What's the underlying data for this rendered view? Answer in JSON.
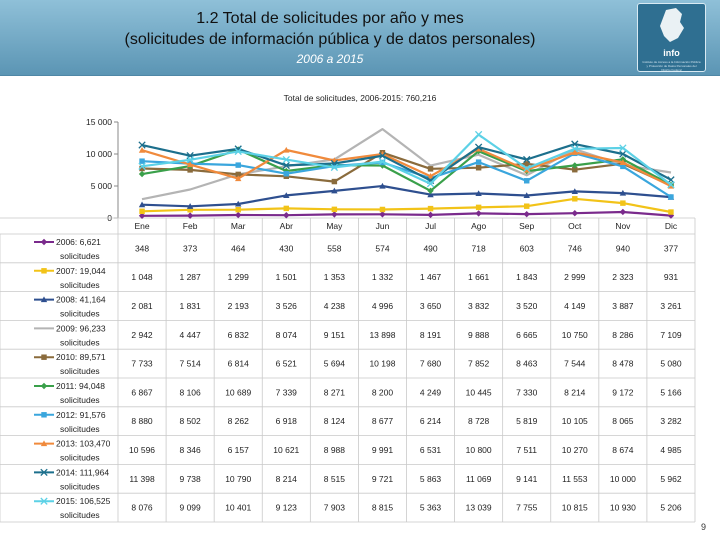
{
  "header": {
    "title_line1": "1.2 Total de solicitudes por año y mes",
    "title_line2": "(solicitudes de información pública y de datos personales)",
    "subtitle": "2006 a 2015",
    "logo_text": "info",
    "logo_fine": "Instituto de Acceso a la Información Pública y Protección de Datos Personales del Distrito Federal"
  },
  "page_number": "9",
  "colors": {
    "banner_top": "#8fc0d8",
    "banner_bottom": "#5b95b4",
    "logo": "#2f6f91"
  },
  "chart_data": {
    "type": "line",
    "title": "Total de solicitudes, 2006-2015: 760,216",
    "categories": [
      "Ene",
      "Feb",
      "Mar",
      "Abr",
      "May",
      "Jun",
      "Jul",
      "Ago",
      "Sep",
      "Oct",
      "Nov",
      "Dic"
    ],
    "ylim": [
      0,
      15000
    ],
    "yticks": [
      0,
      5000,
      10000,
      15000
    ],
    "ytick_labels": [
      "0",
      "5 000",
      "10 000",
      "15 000"
    ],
    "grid": false,
    "legend_position": "left, aligned with data table rows",
    "series": [
      {
        "name": "2006: 6,621 solicitudes",
        "legend_line1": "2006: 6,621",
        "color": "#7a2a8c",
        "marker": "diamond",
        "values": [
          348,
          373,
          464,
          430,
          558,
          574,
          490,
          718,
          603,
          746,
          940,
          377
        ],
        "labels": [
          "348",
          "373",
          "464",
          "430",
          "558",
          "574",
          "490",
          "718",
          "603",
          "746",
          "940",
          "377"
        ]
      },
      {
        "name": "2007: 19,044 solicitudes",
        "legend_line1": "2007: 19,044",
        "color": "#f2c318",
        "marker": "square",
        "values": [
          1048,
          1287,
          1299,
          1501,
          1353,
          1332,
          1467,
          1661,
          1843,
          2999,
          2323,
          931
        ],
        "labels": [
          "1 048",
          "1 287",
          "1 299",
          "1 501",
          "1 353",
          "1 332",
          "1 467",
          "1 661",
          "1 843",
          "2 999",
          "2 323",
          "931"
        ]
      },
      {
        "name": "2008: 41,164 solicitudes",
        "legend_line1": "2008: 41,164",
        "color": "#2e4f8f",
        "marker": "triangle",
        "values": [
          2081,
          1831,
          2193,
          3526,
          4238,
          4996,
          3650,
          3832,
          3520,
          4149,
          3887,
          3261
        ],
        "labels": [
          "2 081",
          "1 831",
          "2 193",
          "3 526",
          "4 238",
          "4 996",
          "3 650",
          "3 832",
          "3 520",
          "4 149",
          "3 887",
          "3 261"
        ]
      },
      {
        "name": "2009: 96,233 solicitudes",
        "legend_line1": "2009: 96,233",
        "color": "#b4b4b4",
        "marker": "none",
        "values": [
          2942,
          4447,
          6832,
          8074,
          9151,
          13898,
          8191,
          9888,
          6665,
          10750,
          8286,
          7109
        ],
        "labels": [
          "2 942",
          "4 447",
          "6 832",
          "8 074",
          "9 151",
          "13 898",
          "8 191",
          "9 888",
          "6 665",
          "10 750",
          "8 286",
          "7 109"
        ]
      },
      {
        "name": "2010: 89,571 solicitudes",
        "legend_line1": "2010: 89,571",
        "color": "#8a6b3c",
        "marker": "square",
        "values": [
          7733,
          7514,
          6814,
          6521,
          5694,
          10198,
          7680,
          7852,
          8463,
          7544,
          8478,
          5080
        ],
        "labels": [
          "7 733",
          "7 514",
          "6 814",
          "6 521",
          "5 694",
          "10 198",
          "7 680",
          "7 852",
          "8 463",
          "7 544",
          "8 478",
          "5 080"
        ]
      },
      {
        "name": "2011: 94,048 solicitudes",
        "legend_line1": "2011: 94,048",
        "color": "#3aa04a",
        "marker": "diamond",
        "values": [
          6867,
          8106,
          10689,
          7339,
          8271,
          8200,
          4249,
          10445,
          7330,
          8214,
          9172,
          5166
        ],
        "labels": [
          "6 867",
          "8 106",
          "10 689",
          "7 339",
          "8 271",
          "8 200",
          "4 249",
          "10 445",
          "7 330",
          "8 214",
          "9 172",
          "5 166"
        ]
      },
      {
        "name": "2012: 91,576 solicitudes",
        "legend_line1": "2012: 91,576",
        "color": "#3aa6dd",
        "marker": "square",
        "values": [
          8880,
          8502,
          8262,
          6918,
          8124,
          8677,
          6214,
          8728,
          5819,
          10105,
          8065,
          3282
        ],
        "labels": [
          "8 880",
          "8 502",
          "8 262",
          "6 918",
          "8 124",
          "8 677",
          "6 214",
          "8 728",
          "5 819",
          "10 105",
          "8 065",
          "3 282"
        ]
      },
      {
        "name": "2013: 103,470 solicitudes",
        "legend_line1": "2013: 103,470",
        "color": "#f08a3c",
        "marker": "triangle",
        "values": [
          10596,
          8346,
          6157,
          10621,
          8988,
          9991,
          6531,
          10800,
          7511,
          10270,
          8674,
          4985
        ],
        "labels": [
          "10 596",
          "8 346",
          "6 157",
          "10 621",
          "8 988",
          "9 991",
          "6 531",
          "10 800",
          "7 511",
          "10 270",
          "8 674",
          "4 985"
        ]
      },
      {
        "name": "2014: 111,964 solicitudes",
        "legend_line1": "2014: 111,964",
        "color": "#1c6f8c",
        "marker": "x",
        "values": [
          11398,
          9738,
          10790,
          8214,
          8515,
          9721,
          5863,
          11069,
          9141,
          11553,
          10000,
          5962
        ],
        "labels": [
          "11 398",
          "9 738",
          "10 790",
          "8 214",
          "8 515",
          "9 721",
          "5 863",
          "11 069",
          "9 141",
          "11 553",
          "10 000",
          "5 962"
        ]
      },
      {
        "name": "2015: 106,525 solicitudes",
        "legend_line1": "2015: 106,525",
        "color": "#5cd1e6",
        "marker": "x",
        "values": [
          8076,
          9099,
          10401,
          9123,
          7903,
          8815,
          5363,
          13039,
          7755,
          10815,
          10930,
          5206
        ],
        "labels": [
          "8 076",
          "9 099",
          "10 401",
          "9 123",
          "7 903",
          "8 815",
          "5 363",
          "13 039",
          "7 755",
          "10 815",
          "10 930",
          "5 206"
        ]
      }
    ],
    "legend_line2": "solicitudes"
  }
}
